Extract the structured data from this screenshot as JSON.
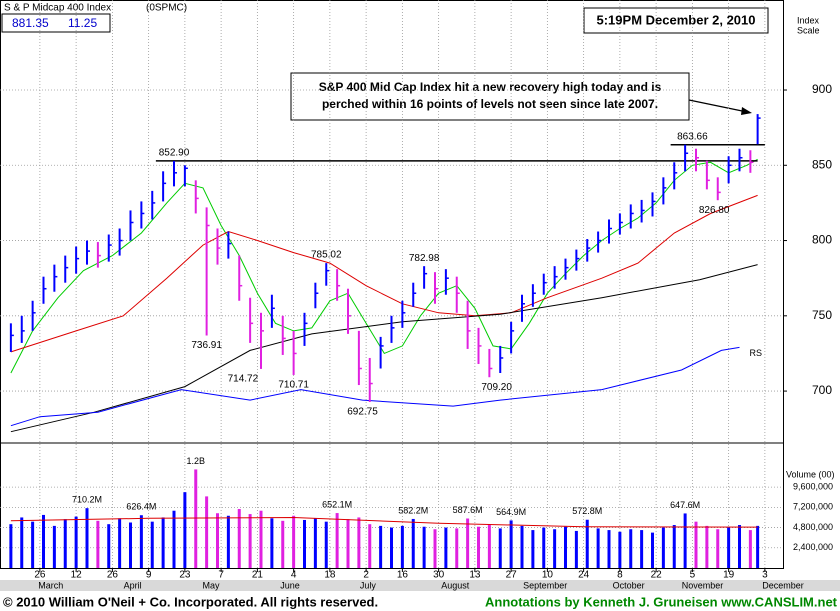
{
  "chart_data": {
    "type": "stock",
    "title": "S & P Midcap 400 Index",
    "symbol": "(0SPMC)",
    "last_price": 881.35,
    "change": 11.25,
    "timestamp": "5:19PM December 2, 2010",
    "y_axis_label": [
      "Index",
      "Scale"
    ],
    "callout": [
      "S&P 400 Mid Cap Index hit a new recovery high today and is",
      "perched within 16 points of levels not seen since late 2007."
    ],
    "xlim": [
      -1,
      215
    ],
    "xticks": [
      {
        "value": 10,
        "label": "26"
      },
      {
        "value": 20,
        "label": "12"
      },
      {
        "value": 30,
        "label": "26"
      },
      {
        "value": 40,
        "label": "9"
      },
      {
        "value": 50,
        "label": "23"
      },
      {
        "value": 60,
        "label": "7"
      },
      {
        "value": 70,
        "label": "21"
      },
      {
        "value": 80,
        "label": "4"
      },
      {
        "value": 90,
        "label": "18"
      },
      {
        "value": 100,
        "label": "2"
      },
      {
        "value": 110,
        "label": "16"
      },
      {
        "value": 120,
        "label": "30"
      },
      {
        "value": 130,
        "label": "13"
      },
      {
        "value": 140,
        "label": "27"
      },
      {
        "value": 150,
        "label": "10"
      },
      {
        "value": 160,
        "label": "24"
      },
      {
        "value": 170,
        "label": "8"
      },
      {
        "value": 180,
        "label": "22"
      },
      {
        "value": 190,
        "label": "5"
      },
      {
        "value": 200,
        "label": "19"
      },
      {
        "value": 210,
        "label": "3"
      }
    ],
    "months": [
      {
        "value": 13,
        "label": "March"
      },
      {
        "value": 35.6,
        "label": "April"
      },
      {
        "value": 57.2,
        "label": "May"
      },
      {
        "value": 79,
        "label": "June"
      },
      {
        "value": 100.5,
        "label": "July"
      },
      {
        "value": 124.6,
        "label": "August"
      },
      {
        "value": 149.4,
        "label": "September"
      },
      {
        "value": 172.4,
        "label": "October"
      },
      {
        "value": 192.8,
        "label": "November"
      },
      {
        "value": 215,
        "label": "December"
      }
    ],
    "ylim": [
      667.5,
      959.8
    ],
    "yticks": [
      700,
      750,
      800,
      850,
      900
    ],
    "grid": true,
    "up_color": "#0000ff",
    "down_color": "#e020e0",
    "bars": {
      "x": [
        2,
        5,
        8,
        11,
        14,
        17,
        20,
        23,
        26,
        29,
        32,
        35,
        38,
        41,
        44,
        47,
        50,
        53,
        56,
        59,
        62,
        65,
        68,
        71,
        74,
        77,
        80,
        83,
        86,
        89,
        92,
        95,
        98,
        101,
        104,
        107,
        110,
        113,
        116,
        119,
        122,
        125,
        128,
        131,
        134,
        137,
        140,
        143,
        146,
        149,
        152,
        155,
        158,
        161,
        164,
        167,
        170,
        173,
        176,
        179,
        182,
        185,
        188,
        191,
        194,
        197,
        200,
        203,
        206,
        208
      ],
      "high": [
        745,
        750,
        760,
        776,
        784,
        790,
        796,
        800,
        799,
        804,
        808,
        820,
        826,
        833,
        846,
        852.9,
        850,
        840,
        822,
        808,
        806,
        790,
        762,
        752,
        764,
        750,
        740,
        752,
        772,
        785.02,
        781,
        768,
        740,
        722,
        736,
        750,
        760,
        772,
        782.98,
        779,
        781,
        776,
        760,
        742,
        728,
        730,
        746,
        764,
        771,
        778,
        783,
        788,
        794,
        801,
        806,
        814,
        818,
        824,
        827,
        832,
        842,
        852,
        863.66,
        861,
        853,
        842,
        856,
        861,
        860,
        884
      ],
      "low": [
        726,
        732,
        740,
        758,
        766,
        772,
        778,
        784,
        782,
        786,
        790,
        800,
        808,
        814,
        826,
        836,
        836,
        818,
        736.91,
        784,
        788,
        760,
        732,
        714.72,
        742,
        724,
        710.71,
        730,
        755,
        770,
        760,
        738,
        704,
        692.75,
        715,
        732,
        742,
        756,
        768,
        758,
        764,
        752,
        728,
        718,
        709.2,
        712,
        725,
        746,
        756,
        764,
        768,
        774,
        780,
        786,
        792,
        798,
        804,
        808,
        812,
        816,
        824,
        834,
        846,
        846,
        834,
        826.8,
        838,
        846,
        845,
        864
      ],
      "close": [
        737,
        740,
        752,
        768,
        776,
        782,
        788,
        793,
        790,
        797,
        800,
        812,
        818,
        825,
        838,
        845,
        848,
        828,
        810,
        795,
        798,
        770,
        745,
        740,
        755,
        735,
        725,
        745,
        765,
        780,
        770,
        750,
        715,
        705,
        730,
        742,
        752,
        765,
        778,
        768,
        775,
        765,
        740,
        730,
        715,
        722,
        740,
        758,
        765,
        772,
        776,
        782,
        788,
        795,
        800,
        808,
        812,
        818,
        820,
        826,
        835,
        845,
        858,
        855,
        840,
        832,
        850,
        855,
        852,
        881.35
      ],
      "volume": [
        5200000,
        6000000,
        5500000,
        6300000,
        5000000,
        5800000,
        6100000,
        7102000,
        5600000,
        5200000,
        5900000,
        5400000,
        6264000,
        5500000,
        6000000,
        6800000,
        9000000,
        11700000,
        8500000,
        6500000,
        6200000,
        7000000,
        6400000,
        6800000,
        5900000,
        5600000,
        6200000,
        5700000,
        5900000,
        5500000,
        6521000,
        5800000,
        6000000,
        5200000,
        5000000,
        4800000,
        5000000,
        5822000,
        4900000,
        4600000,
        4800000,
        4700000,
        5876000,
        4900000,
        5100000,
        4700000,
        5649000,
        5000000,
        4500000,
        4800000,
        4600000,
        4900000,
        4400000,
        5728000,
        4700000,
        4500000,
        4300000,
        4600000,
        4500000,
        4200000,
        4800000,
        5100000,
        6476000,
        5500000,
        5000000,
        4600000,
        4800000,
        5100000,
        4500000,
        5000000
      ]
    },
    "lines": [
      {
        "color": "#00cc00",
        "x": [
          2,
          8,
          15,
          22,
          30,
          38,
          45,
          50,
          55,
          60,
          65,
          70,
          75,
          80,
          85,
          90,
          95,
          100,
          105,
          110,
          115,
          120,
          125,
          130,
          135,
          140,
          145,
          150,
          155,
          160,
          165,
          170,
          175,
          180,
          185,
          190,
          195,
          200,
          205,
          208
        ],
        "values": [
          712,
          740,
          762,
          780,
          790,
          805,
          825,
          838,
          835,
          810,
          790,
          765,
          745,
          740,
          742,
          760,
          765,
          745,
          725,
          730,
          750,
          765,
          770,
          755,
          730,
          728,
          745,
          765,
          778,
          790,
          800,
          808,
          815,
          825,
          840,
          850,
          852,
          845,
          850,
          854
        ]
      },
      {
        "color": "#dd0000",
        "x": [
          2,
          20,
          33,
          45,
          55,
          62,
          70,
          80,
          90,
          100,
          110,
          120,
          130,
          140,
          150,
          165,
          175,
          185,
          195,
          208
        ],
        "values": [
          726,
          740,
          750,
          775,
          797,
          806,
          800,
          792,
          785,
          770,
          758,
          752,
          750,
          752,
          762,
          775,
          785,
          805,
          818,
          830
        ]
      },
      {
        "color": "#000000",
        "x": [
          2,
          25,
          50,
          68,
          85,
          110,
          137,
          165,
          192,
          208
        ],
        "values": [
          673,
          686,
          703,
          727,
          738,
          746,
          751,
          762,
          774,
          784
        ]
      }
    ],
    "rs_line": {
      "label": "RS",
      "color": "#0000ff",
      "x": [
        2,
        10,
        26,
        49,
        68,
        82,
        99,
        124,
        137,
        165,
        187,
        198,
        203
      ],
      "values": [
        677,
        683,
        686,
        701,
        694,
        701,
        694,
        690,
        694,
        701,
        714,
        727,
        729
      ]
    },
    "reference_lines": [
      {
        "value": 852.9,
        "x": [
          42,
          208
        ]
      },
      {
        "value": 863.66,
        "x": [
          184,
          210
        ]
      }
    ],
    "annotations": [
      {
        "label": "852.90",
        "value": 852.9,
        "x": 47,
        "pos": "above"
      },
      {
        "label": "736.91",
        "value": 736.91,
        "x": 56,
        "pos": "below"
      },
      {
        "label": "714.72",
        "value": 714.72,
        "x": 66,
        "pos": "below"
      },
      {
        "label": "710.71",
        "value": 710.71,
        "x": 80,
        "pos": "below"
      },
      {
        "label": "785.02",
        "value": 785.02,
        "x": 89,
        "pos": "above"
      },
      {
        "label": "692.75",
        "value": 692.75,
        "x": 99,
        "pos": "below"
      },
      {
        "label": "782.98",
        "value": 782.98,
        "x": 116,
        "pos": "above"
      },
      {
        "label": "709.20",
        "value": 709.2,
        "x": 136,
        "pos": "below"
      },
      {
        "label": "863.66",
        "value": 863.66,
        "x": 190,
        "pos": "above"
      },
      {
        "label": "826.80",
        "value": 826.8,
        "x": 196,
        "pos": "below"
      }
    ],
    "volume": {
      "axis_label": "Volume (00)",
      "ylim": [
        0,
        14600000
      ],
      "yticks": [
        {
          "value": 2400000,
          "label": "2,400,000"
        },
        {
          "value": 4800000,
          "label": "4,800,000"
        },
        {
          "value": 7200000,
          "label": "7,200,000"
        },
        {
          "value": 9600000,
          "label": "9,600,000"
        }
      ],
      "average": {
        "color": "#dd0000",
        "x": [
          2,
          40,
          80,
          120,
          160,
          208
        ],
        "values": [
          5600000,
          5900000,
          6000000,
          5300000,
          4900000,
          4850000
        ]
      },
      "annotations": [
        {
          "label": "710.2M",
          "value": 7102000,
          "x": 23
        },
        {
          "label": "626.4M",
          "value": 6264000,
          "x": 38
        },
        {
          "label": "1.2B",
          "value": 11700000,
          "x": 53
        },
        {
          "label": "652.1M",
          "value": 6521000,
          "x": 92
        },
        {
          "label": "582.2M",
          "value": 5822000,
          "x": 113
        },
        {
          "label": "587.6M",
          "value": 5876000,
          "x": 128
        },
        {
          "label": "564.9M",
          "value": 5649000,
          "x": 140
        },
        {
          "label": "572.8M",
          "value": 5728000,
          "x": 161
        },
        {
          "label": "647.6M",
          "value": 6476000,
          "x": 188
        }
      ]
    },
    "footer": {
      "copyright": "© 2010 William O'Neil + Co. Incorporated. All rights reserved.",
      "credit": "Annotations by Kenneth J. Gruneisen www.CANSLIM.net"
    }
  }
}
